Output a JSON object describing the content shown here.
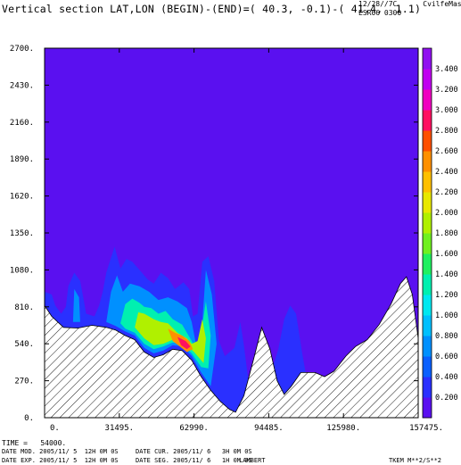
{
  "title": "Vertical section LAT,LON (BEGIN)-(END)=( 40.3, -0.1)-( 41.4,  1.1)",
  "header": {
    "date": "12/28//7C",
    "model": "ESR06 0300",
    "tag": "CvilfeMas"
  },
  "footer": {
    "time": "TIME =   54000.",
    "date_mod": "DATE MOD. 2005/11/ 5  12H 0M 0S",
    "date_cur": "DATE CUR. 2005/11/ 6   3H 0M 0S",
    "date_exp": "DATE EXP. 2005/11/ 5  12H 0M 0S",
    "date_seg": "DATE SEG. 2005/11/ 6   1H 0M 0S",
    "projection": "LAMBERT",
    "units": "TKEM M**2/S**2"
  },
  "chart_data": {
    "type": "heatmap",
    "title": "Vertical section LAT,LON (BEGIN)-(END)=( 40.3, -0.1)-( 41.4,  1.1)",
    "xlim": [
      0,
      157475
    ],
    "ylim": [
      0,
      2700
    ],
    "x_ticks": [
      "0.",
      "31495.",
      "62990.",
      "94485.",
      "125980.",
      "157475."
    ],
    "y_ticks": [
      "0.",
      "270.",
      "540.",
      "810.",
      "1080.",
      "1350.",
      "1620.",
      "1890.",
      "2160.",
      "2430.",
      "2700."
    ],
    "colorbar": {
      "label": "TKEM M**2/S**2",
      "levels": [
        "0.200",
        "0.400",
        "0.600",
        "0.800",
        "1.000",
        "1.200",
        "1.400",
        "1.600",
        "1.800",
        "2.000",
        "2.200",
        "2.400",
        "2.600",
        "2.800",
        "3.000",
        "3.200",
        "3.400"
      ],
      "colors": [
        "#5a10f0",
        "#2a30ff",
        "#0a60ff",
        "#0090ff",
        "#00c0ff",
        "#00e8f0",
        "#00f0b0",
        "#20f060",
        "#70f020",
        "#b0f000",
        "#e8e800",
        "#ffc000",
        "#ff9000",
        "#ff5000",
        "#ff1060",
        "#f000c0",
        "#c000f0",
        "#9010f0"
      ]
    },
    "terrain": [
      [
        0,
        820
      ],
      [
        3000,
        740
      ],
      [
        8000,
        660
      ],
      [
        14000,
        655
      ],
      [
        20000,
        675
      ],
      [
        26000,
        660
      ],
      [
        30000,
        640
      ],
      [
        34000,
        600
      ],
      [
        38000,
        570
      ],
      [
        42000,
        480
      ],
      [
        46000,
        440
      ],
      [
        50000,
        460
      ],
      [
        54000,
        500
      ],
      [
        58000,
        490
      ],
      [
        62000,
        420
      ],
      [
        66000,
        300
      ],
      [
        70000,
        200
      ],
      [
        74000,
        120
      ],
      [
        78000,
        60
      ],
      [
        80500,
        40
      ],
      [
        84000,
        160
      ],
      [
        88000,
        420
      ],
      [
        91500,
        660
      ],
      [
        95000,
        500
      ],
      [
        98000,
        270
      ],
      [
        101000,
        170
      ],
      [
        104000,
        230
      ],
      [
        108000,
        330
      ],
      [
        114000,
        330
      ],
      [
        118000,
        300
      ],
      [
        122000,
        340
      ],
      [
        127000,
        450
      ],
      [
        131000,
        520
      ],
      [
        136000,
        570
      ],
      [
        141000,
        680
      ],
      [
        146000,
        830
      ],
      [
        150000,
        980
      ],
      [
        152500,
        1030
      ],
      [
        155000,
        900
      ],
      [
        157475,
        580
      ]
    ],
    "contours": [
      {
        "level": 0.2,
        "points": [
          [
            0,
            830
          ],
          [
            0,
            920
          ],
          [
            3000,
            900
          ],
          [
            4500,
            820
          ],
          [
            7000,
            760
          ],
          [
            9000,
            810
          ],
          [
            10000,
            960
          ],
          [
            12500,
            1060
          ],
          [
            15000,
            1000
          ],
          [
            16500,
            860
          ],
          [
            17500,
            760
          ],
          [
            21000,
            740
          ],
          [
            23000,
            820
          ],
          [
            24500,
            920
          ],
          [
            26000,
            1060
          ],
          [
            29500,
            1250
          ],
          [
            32000,
            1090
          ],
          [
            34500,
            1160
          ],
          [
            37000,
            1140
          ],
          [
            40000,
            1080
          ],
          [
            43500,
            1010
          ],
          [
            46000,
            980
          ],
          [
            49000,
            1060
          ],
          [
            52000,
            1020
          ],
          [
            55000,
            940
          ],
          [
            58500,
            990
          ],
          [
            61000,
            940
          ],
          [
            62500,
            740
          ],
          [
            64500,
            760
          ],
          [
            66500,
            1140
          ],
          [
            69000,
            1180
          ],
          [
            71500,
            1000
          ],
          [
            73500,
            560
          ],
          [
            76000,
            450
          ],
          [
            80000,
            510
          ],
          [
            82500,
            700
          ],
          [
            84000,
            530
          ],
          [
            86000,
            260
          ],
          [
            88000,
            160
          ],
          [
            91500,
            660
          ],
          [
            94000,
            520
          ],
          [
            96000,
            360
          ],
          [
            98500,
            500
          ],
          [
            101000,
            720
          ],
          [
            103500,
            820
          ],
          [
            106000,
            760
          ],
          [
            108500,
            480
          ],
          [
            110000,
            330
          ],
          [
            108000,
            330
          ],
          [
            104000,
            230
          ],
          [
            101000,
            170
          ],
          [
            98000,
            270
          ],
          [
            95000,
            500
          ],
          [
            91500,
            660
          ],
          [
            88000,
            420
          ],
          [
            84000,
            160
          ],
          [
            80500,
            40
          ],
          [
            78000,
            60
          ],
          [
            74000,
            120
          ],
          [
            70000,
            200
          ],
          [
            66000,
            300
          ],
          [
            62000,
            420
          ],
          [
            58000,
            490
          ],
          [
            54000,
            500
          ],
          [
            50000,
            460
          ],
          [
            46000,
            440
          ],
          [
            42000,
            480
          ],
          [
            38000,
            570
          ],
          [
            34000,
            600
          ],
          [
            30000,
            640
          ],
          [
            26000,
            660
          ],
          [
            20000,
            675
          ],
          [
            14000,
            655
          ],
          [
            8000,
            660
          ],
          [
            3000,
            740
          ]
        ]
      },
      {
        "level": 0.6,
        "points": [
          [
            12000,
            700
          ],
          [
            12500,
            940
          ],
          [
            14500,
            880
          ],
          [
            15000,
            700
          ]
        ]
      },
      {
        "level": 0.6,
        "points": [
          [
            26000,
            700
          ],
          [
            28000,
            920
          ],
          [
            30500,
            1040
          ],
          [
            33000,
            920
          ],
          [
            36000,
            980
          ],
          [
            40000,
            960
          ],
          [
            44000,
            920
          ],
          [
            48000,
            860
          ],
          [
            52000,
            880
          ],
          [
            56000,
            850
          ],
          [
            60000,
            800
          ],
          [
            62000,
            700
          ],
          [
            64000,
            520
          ],
          [
            66500,
            700
          ],
          [
            68000,
            1080
          ],
          [
            70500,
            900
          ],
          [
            72500,
            540
          ],
          [
            70000,
            230
          ],
          [
            66000,
            330
          ],
          [
            62000,
            450
          ],
          [
            58000,
            520
          ],
          [
            54000,
            530
          ],
          [
            50000,
            490
          ],
          [
            46000,
            470
          ],
          [
            42000,
            510
          ],
          [
            38000,
            600
          ],
          [
            34000,
            630
          ],
          [
            30000,
            670
          ]
        ]
      },
      {
        "level": 1.2,
        "points": [
          [
            32000,
            690
          ],
          [
            34000,
            830
          ],
          [
            37000,
            870
          ],
          [
            40000,
            840
          ],
          [
            42000,
            810
          ],
          [
            45000,
            800
          ],
          [
            48000,
            760
          ],
          [
            51000,
            780
          ],
          [
            54000,
            720
          ],
          [
            58000,
            680
          ],
          [
            60000,
            620
          ],
          [
            62000,
            560
          ],
          [
            64000,
            480
          ],
          [
            66000,
            620
          ],
          [
            68000,
            850
          ],
          [
            70000,
            600
          ],
          [
            69000,
            360
          ],
          [
            66000,
            370
          ],
          [
            62000,
            470
          ],
          [
            58000,
            540
          ],
          [
            54000,
            550
          ],
          [
            50000,
            520
          ],
          [
            46000,
            500
          ],
          [
            42000,
            540
          ],
          [
            38000,
            620
          ],
          [
            34000,
            650
          ]
        ]
      },
      {
        "level": 1.8,
        "points": [
          [
            38000,
            660
          ],
          [
            39500,
            770
          ],
          [
            42000,
            760
          ],
          [
            44000,
            740
          ],
          [
            46000,
            720
          ],
          [
            49000,
            700
          ],
          [
            52000,
            690
          ],
          [
            56000,
            620
          ],
          [
            60000,
            580
          ],
          [
            62000,
            540
          ],
          [
            64500,
            560
          ],
          [
            66500,
            720
          ],
          [
            68000,
            580
          ],
          [
            67000,
            400
          ],
          [
            63000,
            480
          ],
          [
            58000,
            560
          ],
          [
            54000,
            570
          ],
          [
            50000,
            540
          ],
          [
            46000,
            530
          ],
          [
            42000,
            580
          ]
        ]
      },
      {
        "level": 2.4,
        "points": [
          [
            52000,
            650
          ],
          [
            55000,
            620
          ],
          [
            58000,
            600
          ],
          [
            61000,
            560
          ],
          [
            62500,
            500
          ],
          [
            60000,
            480
          ],
          [
            57000,
            520
          ],
          [
            54000,
            560
          ]
        ]
      },
      {
        "level": 2.8,
        "points": [
          [
            56000,
            590
          ],
          [
            59500,
            560
          ],
          [
            61500,
            520
          ],
          [
            60000,
            500
          ],
          [
            57500,
            530
          ]
        ]
      }
    ],
    "grid": false,
    "legend": "right colorbar"
  }
}
